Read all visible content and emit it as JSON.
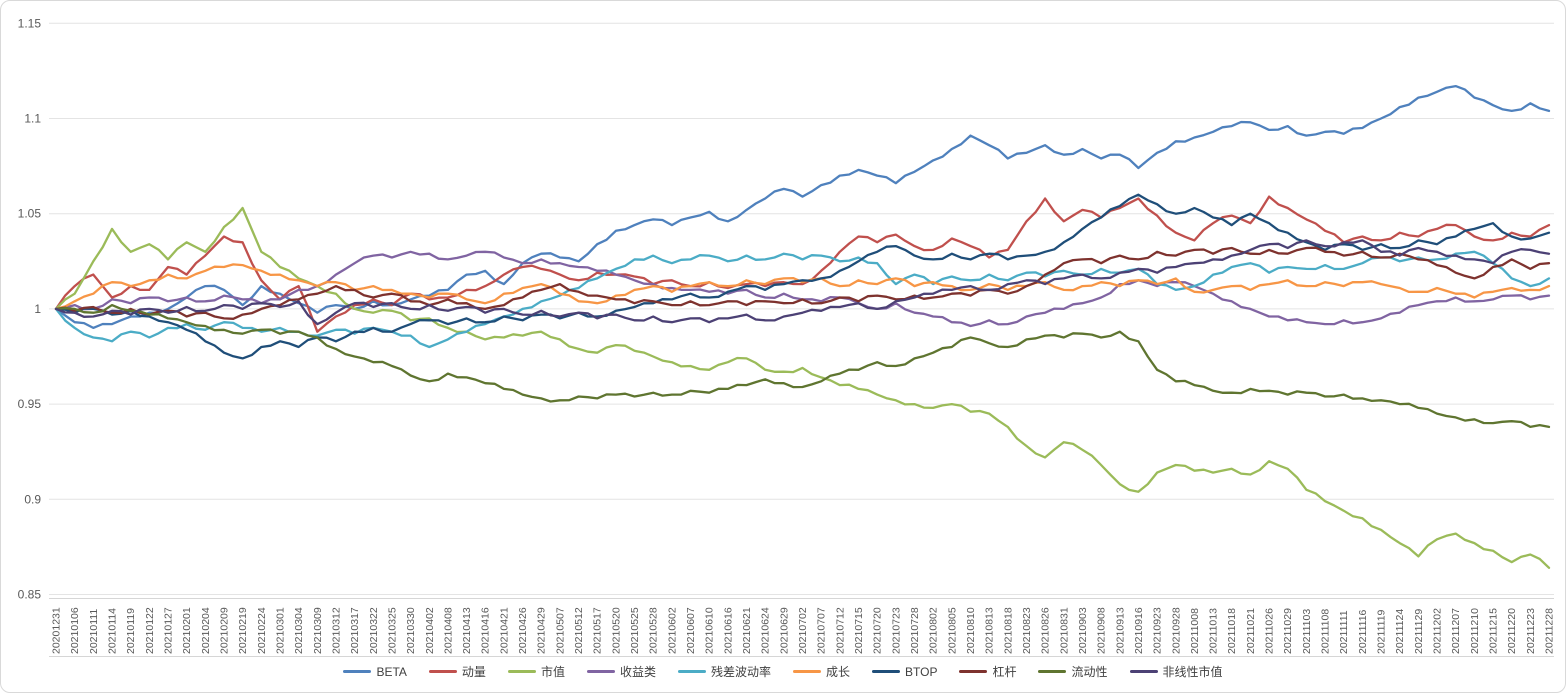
{
  "chart": {
    "background": "#ffffff",
    "border_color": "#d9d9d9",
    "gridline_color": "#e4e4e4",
    "tick_label_color": "#595959",
    "legend_text_color": "#404040"
  },
  "chart_data": {
    "type": "line",
    "title": "",
    "xlabel": "",
    "ylabel": "",
    "grid": "horizontal",
    "legend_position": "bottom-center",
    "ylim": [
      0.85,
      1.15
    ],
    "y_ticks": [
      1.15,
      1.1,
      1.05,
      1,
      0.95,
      0.9,
      0.85
    ],
    "y_tick_labels": [
      "1.15",
      "1.1",
      "1.05",
      "1",
      "0.95",
      "0.9",
      "0.85"
    ],
    "x_tick_labels": [
      "20201231",
      "20210106",
      "20210111",
      "20210114",
      "20210119",
      "20210122",
      "20210127",
      "20210201",
      "20210204",
      "20210209",
      "20210219",
      "20210224",
      "20210301",
      "20210304",
      "20210309",
      "20210312",
      "20210317",
      "20210322",
      "20210325",
      "20210330",
      "20210402",
      "20210408",
      "20210413",
      "20210416",
      "20210421",
      "20210426",
      "20210429",
      "20210507",
      "20210512",
      "20210517",
      "20210520",
      "20210525",
      "20210528",
      "20210602",
      "20210607",
      "20210610",
      "20210616",
      "20210621",
      "20210624",
      "20210629",
      "20210702",
      "20210707",
      "20210712",
      "20210715",
      "20210720",
      "20210723",
      "20210728",
      "20210802",
      "20210805",
      "20210810",
      "20210813",
      "20210818",
      "20210823",
      "20210826",
      "20210831",
      "20210903",
      "20210908",
      "20210913",
      "20210916",
      "20210923",
      "20210928",
      "20211008",
      "20211013",
      "20211018",
      "20211021",
      "20211026",
      "20211029",
      "20211103",
      "20211108",
      "20211111",
      "20211116",
      "20211119",
      "20211124",
      "20211129",
      "20211202",
      "20211207",
      "20211210",
      "20211215",
      "20211220",
      "20211223",
      "20211228"
    ],
    "series": [
      {
        "name": "BETA",
        "color": "#4F81BD",
        "values": [
          1.0,
          0.993,
          0.99,
          0.992,
          0.996,
          0.998,
          1.0,
          1.006,
          1.012,
          1.01,
          1.002,
          1.012,
          1.008,
          1.003,
          0.998,
          1.002,
          1.0,
          1.004,
          1.002,
          1.005,
          1.007,
          1.01,
          1.018,
          1.02,
          1.013,
          1.024,
          1.029,
          1.027,
          1.025,
          1.034,
          1.041,
          1.044,
          1.047,
          1.044,
          1.048,
          1.051,
          1.046,
          1.052,
          1.058,
          1.063,
          1.059,
          1.065,
          1.07,
          1.073,
          1.07,
          1.066,
          1.072,
          1.078,
          1.084,
          1.091,
          1.086,
          1.079,
          1.082,
          1.086,
          1.081,
          1.084,
          1.079,
          1.081,
          1.074,
          1.082,
          1.088,
          1.09,
          1.093,
          1.096,
          1.098,
          1.094,
          1.096,
          1.091,
          1.093,
          1.092,
          1.095,
          1.1,
          1.106,
          1.111,
          1.114,
          1.117,
          1.111,
          1.107,
          1.104,
          1.108,
          1.104
        ]
      },
      {
        "name": "动量",
        "color": "#C0504D",
        "values": [
          1.0,
          1.012,
          1.018,
          1.006,
          1.012,
          1.01,
          1.022,
          1.018,
          1.028,
          1.038,
          1.035,
          1.015,
          1.005,
          1.012,
          0.988,
          0.996,
          1.002,
          1.005,
          1.002,
          1.008,
          1.005,
          1.006,
          1.01,
          1.012,
          1.018,
          1.022,
          1.021,
          1.018,
          1.015,
          1.019,
          1.018,
          1.017,
          1.013,
          1.015,
          1.012,
          1.014,
          1.011,
          1.013,
          1.012,
          1.014,
          1.013,
          1.02,
          1.03,
          1.038,
          1.035,
          1.039,
          1.033,
          1.031,
          1.037,
          1.033,
          1.027,
          1.031,
          1.046,
          1.058,
          1.046,
          1.052,
          1.048,
          1.053,
          1.058,
          1.049,
          1.04,
          1.036,
          1.045,
          1.049,
          1.045,
          1.059,
          1.053,
          1.047,
          1.041,
          1.035,
          1.038,
          1.036,
          1.04,
          1.038,
          1.042,
          1.044,
          1.038,
          1.036,
          1.04,
          1.038,
          1.044
        ]
      },
      {
        "name": "市值",
        "color": "#9BBB59",
        "values": [
          1.0,
          1.008,
          1.025,
          1.042,
          1.03,
          1.034,
          1.026,
          1.035,
          1.03,
          1.043,
          1.053,
          1.03,
          1.022,
          1.016,
          1.012,
          1.008,
          1.0,
          0.998,
          0.999,
          0.994,
          0.995,
          0.99,
          0.988,
          0.984,
          0.985,
          0.986,
          0.988,
          0.984,
          0.979,
          0.977,
          0.981,
          0.978,
          0.975,
          0.972,
          0.97,
          0.968,
          0.972,
          0.974,
          0.968,
          0.967,
          0.969,
          0.964,
          0.96,
          0.958,
          0.955,
          0.952,
          0.95,
          0.948,
          0.95,
          0.946,
          0.945,
          0.938,
          0.928,
          0.922,
          0.93,
          0.926,
          0.918,
          0.908,
          0.904,
          0.914,
          0.918,
          0.915,
          0.914,
          0.916,
          0.913,
          0.92,
          0.916,
          0.905,
          0.899,
          0.894,
          0.89,
          0.884,
          0.877,
          0.87,
          0.879,
          0.882,
          0.877,
          0.873,
          0.867,
          0.871,
          0.864
        ]
      },
      {
        "name": "收益类",
        "color": "#8064A2",
        "values": [
          1.0,
          1.002,
          1.0,
          1.005,
          1.003,
          1.006,
          1.004,
          1.006,
          1.004,
          1.007,
          1.005,
          1.003,
          1.005,
          1.01,
          1.012,
          1.018,
          1.024,
          1.028,
          1.027,
          1.03,
          1.029,
          1.026,
          1.028,
          1.03,
          1.027,
          1.024,
          1.026,
          1.024,
          1.022,
          1.02,
          1.018,
          1.015,
          1.013,
          1.011,
          1.01,
          1.009,
          1.008,
          1.01,
          1.006,
          1.008,
          1.005,
          1.004,
          1.006,
          1.003,
          1.0,
          1.003,
          0.998,
          0.996,
          0.993,
          0.991,
          0.994,
          0.992,
          0.996,
          0.998,
          1.0,
          1.003,
          1.006,
          1.013,
          1.015,
          1.012,
          1.014,
          1.012,
          1.008,
          1.004,
          1.0,
          0.996,
          0.994,
          0.993,
          0.992,
          0.994,
          0.993,
          0.995,
          0.998,
          1.002,
          1.004,
          1.006,
          1.004,
          1.005,
          1.007,
          1.005,
          1.007
        ]
      },
      {
        "name": "残差波动率",
        "color": "#4BACC6",
        "values": [
          1.0,
          0.99,
          0.985,
          0.983,
          0.988,
          0.985,
          0.99,
          0.992,
          0.989,
          0.993,
          0.99,
          0.988,
          0.99,
          0.988,
          0.986,
          0.989,
          0.987,
          0.99,
          0.988,
          0.986,
          0.98,
          0.984,
          0.988,
          0.992,
          0.996,
          1.0,
          1.004,
          1.007,
          1.011,
          1.016,
          1.021,
          1.026,
          1.028,
          1.024,
          1.026,
          1.028,
          1.025,
          1.028,
          1.026,
          1.029,
          1.026,
          1.028,
          1.025,
          1.027,
          1.024,
          1.013,
          1.018,
          1.013,
          1.017,
          1.015,
          1.018,
          1.015,
          1.019,
          1.017,
          1.02,
          1.018,
          1.021,
          1.019,
          1.021,
          1.013,
          1.01,
          1.012,
          1.018,
          1.022,
          1.024,
          1.019,
          1.022,
          1.021,
          1.023,
          1.021,
          1.024,
          1.027,
          1.025,
          1.027,
          1.026,
          1.029,
          1.03,
          1.024,
          1.016,
          1.012,
          1.016
        ]
      },
      {
        "name": "成长",
        "color": "#F79646",
        "values": [
          1.0,
          1.004,
          1.008,
          1.014,
          1.012,
          1.015,
          1.018,
          1.016,
          1.02,
          1.022,
          1.023,
          1.02,
          1.018,
          1.015,
          1.012,
          1.014,
          1.01,
          1.012,
          1.01,
          1.008,
          1.006,
          1.008,
          1.005,
          1.003,
          1.008,
          1.011,
          1.013,
          1.008,
          1.004,
          1.003,
          1.007,
          1.01,
          1.012,
          1.009,
          1.012,
          1.014,
          1.012,
          1.015,
          1.013,
          1.016,
          1.014,
          1.016,
          1.012,
          1.015,
          1.013,
          1.016,
          1.012,
          1.014,
          1.012,
          1.01,
          1.013,
          1.01,
          1.012,
          1.014,
          1.01,
          1.012,
          1.014,
          1.012,
          1.015,
          1.013,
          1.016,
          1.009,
          1.01,
          1.012,
          1.01,
          1.013,
          1.015,
          1.012,
          1.014,
          1.012,
          1.014,
          1.013,
          1.011,
          1.009,
          1.011,
          1.008,
          1.006,
          1.009,
          1.011,
          1.01,
          1.012
        ]
      },
      {
        "name": "BTOP",
        "color": "#1F4E79",
        "values": [
          1.0,
          0.998,
          1.0,
          0.997,
          0.999,
          0.996,
          0.993,
          0.989,
          0.983,
          0.977,
          0.974,
          0.98,
          0.983,
          0.98,
          0.985,
          0.983,
          0.988,
          0.99,
          0.988,
          0.992,
          0.994,
          0.992,
          0.995,
          0.993,
          0.996,
          0.994,
          0.997,
          0.995,
          0.998,
          0.996,
          0.999,
          1.001,
          1.003,
          1.005,
          1.008,
          1.006,
          1.009,
          1.012,
          1.01,
          1.013,
          1.015,
          1.016,
          1.02,
          1.025,
          1.03,
          1.033,
          1.028,
          1.026,
          1.029,
          1.026,
          1.029,
          1.026,
          1.028,
          1.03,
          1.035,
          1.042,
          1.048,
          1.054,
          1.06,
          1.055,
          1.05,
          1.053,
          1.048,
          1.044,
          1.05,
          1.045,
          1.04,
          1.035,
          1.031,
          1.034,
          1.031,
          1.034,
          1.032,
          1.036,
          1.034,
          1.038,
          1.042,
          1.045,
          1.038,
          1.037,
          1.04
        ]
      },
      {
        "name": "杠杆",
        "color": "#7E322E",
        "values": [
          1.0,
          0.999,
          1.001,
          0.998,
          1.0,
          0.997,
          0.999,
          0.996,
          0.998,
          0.995,
          0.997,
          1.0,
          1.002,
          1.005,
          1.008,
          1.012,
          1.01,
          1.006,
          1.008,
          1.004,
          1.002,
          1.005,
          1.003,
          1.0,
          1.002,
          1.006,
          1.01,
          1.013,
          1.009,
          1.007,
          1.005,
          1.003,
          1.004,
          1.002,
          1.004,
          1.002,
          1.004,
          1.002,
          1.004,
          1.003,
          1.005,
          1.003,
          1.006,
          1.004,
          1.007,
          1.005,
          1.007,
          1.006,
          1.008,
          1.007,
          1.01,
          1.008,
          1.012,
          1.018,
          1.024,
          1.026,
          1.024,
          1.028,
          1.026,
          1.03,
          1.028,
          1.031,
          1.029,
          1.032,
          1.029,
          1.031,
          1.029,
          1.032,
          1.03,
          1.028,
          1.03,
          1.027,
          1.029,
          1.026,
          1.023,
          1.019,
          1.016,
          1.022,
          1.026,
          1.021,
          1.024
        ]
      },
      {
        "name": "流动性",
        "color": "#5F7530",
        "values": [
          1.0,
          1.0,
          0.998,
          1.002,
          0.999,
          0.997,
          0.995,
          0.993,
          0.991,
          0.989,
          0.987,
          0.989,
          0.987,
          0.988,
          0.985,
          0.979,
          0.975,
          0.972,
          0.97,
          0.965,
          0.962,
          0.966,
          0.964,
          0.961,
          0.958,
          0.955,
          0.953,
          0.952,
          0.954,
          0.953,
          0.955,
          0.954,
          0.956,
          0.955,
          0.957,
          0.956,
          0.958,
          0.96,
          0.963,
          0.961,
          0.959,
          0.962,
          0.966,
          0.968,
          0.972,
          0.97,
          0.974,
          0.977,
          0.98,
          0.985,
          0.982,
          0.98,
          0.984,
          0.986,
          0.985,
          0.987,
          0.985,
          0.988,
          0.983,
          0.968,
          0.962,
          0.96,
          0.957,
          0.956,
          0.958,
          0.957,
          0.955,
          0.956,
          0.954,
          0.955,
          0.953,
          0.952,
          0.95,
          0.948,
          0.945,
          0.943,
          0.942,
          0.94,
          0.941,
          0.938,
          0.938
        ]
      },
      {
        "name": "非线性市值",
        "color": "#4C4175",
        "values": [
          1.0,
          0.998,
          0.996,
          0.999,
          0.997,
          1.0,
          0.998,
          1.001,
          0.999,
          1.002,
          1.0,
          1.003,
          1.001,
          1.004,
          0.992,
          0.998,
          1.003,
          1.001,
          1.003,
          1.0,
          1.002,
          0.999,
          1.001,
          0.998,
          1.0,
          0.997,
          0.999,
          0.996,
          0.998,
          0.995,
          0.997,
          0.994,
          0.996,
          0.993,
          0.995,
          0.993,
          0.995,
          0.997,
          0.994,
          0.996,
          0.998,
          0.999,
          1.001,
          1.003,
          1.0,
          1.004,
          1.006,
          1.008,
          1.01,
          1.012,
          1.01,
          1.013,
          1.015,
          1.013,
          1.016,
          1.018,
          1.016,
          1.019,
          1.021,
          1.019,
          1.022,
          1.024,
          1.026,
          1.028,
          1.031,
          1.034,
          1.032,
          1.036,
          1.033,
          1.035,
          1.036,
          1.03,
          1.028,
          1.032,
          1.03,
          1.028,
          1.026,
          1.024,
          1.03,
          1.031,
          1.029
        ]
      }
    ]
  }
}
